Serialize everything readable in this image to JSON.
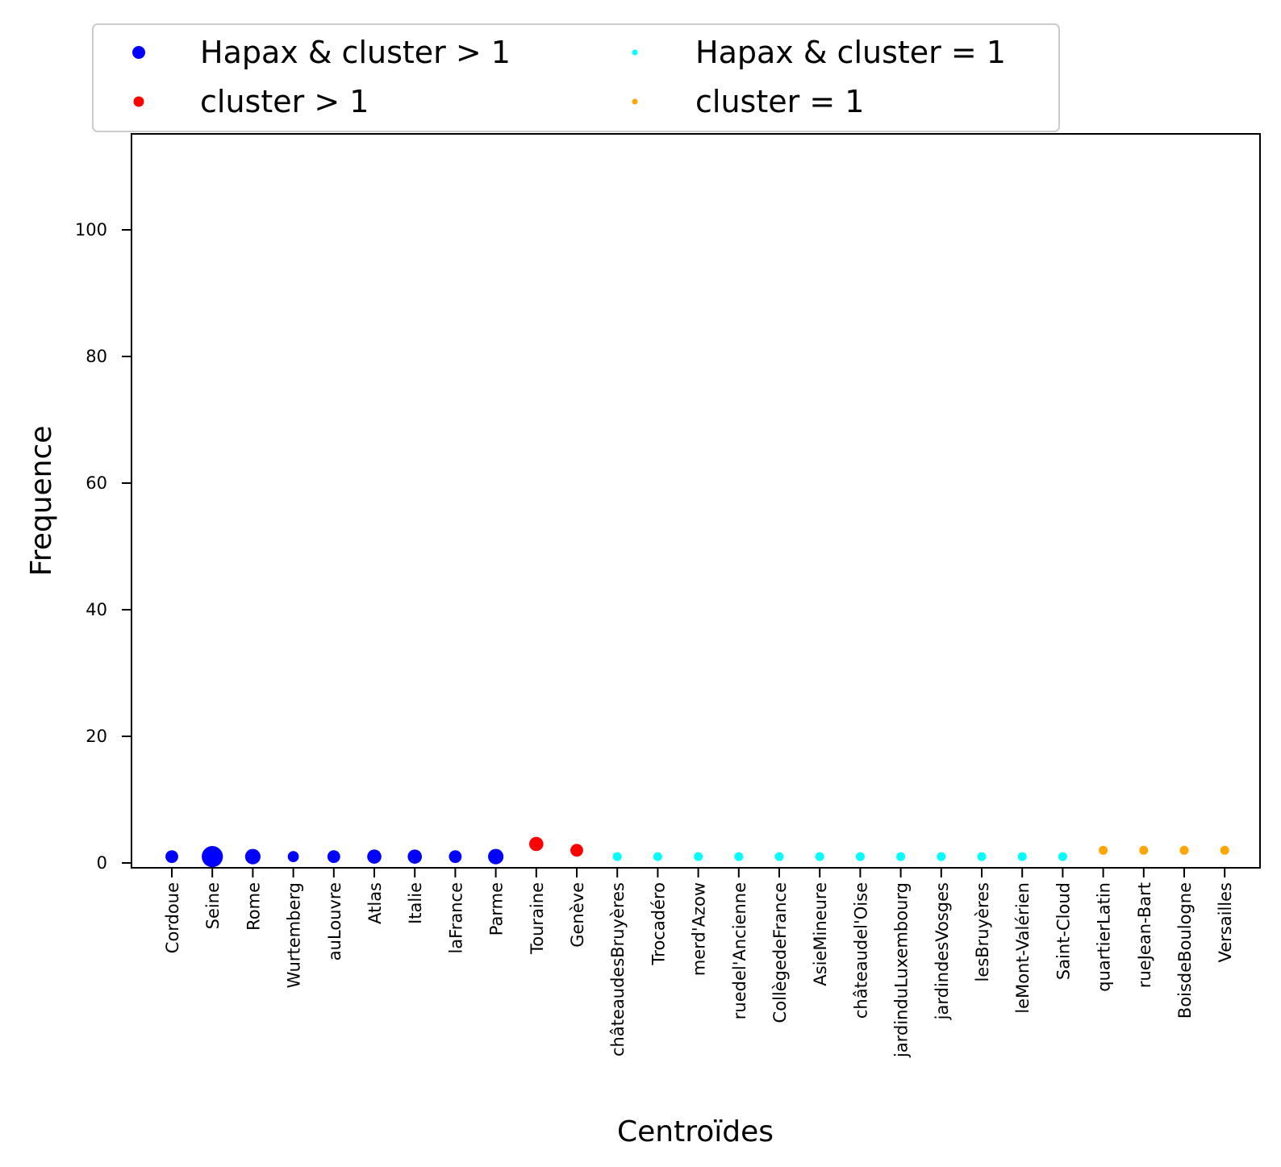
{
  "chart_data": {
    "type": "scatter",
    "xlabel": "Centroïdes",
    "ylabel": "Frequence",
    "ylim": [
      -1,
      115
    ],
    "yticks": [
      0,
      20,
      40,
      60,
      80,
      100
    ],
    "grid": false,
    "legend_placement": "top, above plot, 2 columns",
    "categories": [
      "Cordoue",
      "Seine",
      "Rome",
      "Wurtemberg",
      "auLouvre",
      "Atlas",
      "Italie",
      "laFrance",
      "Parme",
      "Touraine",
      "Genève",
      "châteaudesBruyères",
      "Trocadéro",
      "merd'Azow",
      "ruedel'Ancienne",
      "CollègedeFrance",
      "AsieMineure",
      "châteaudel'Oise",
      "jardinduLuxembourg",
      "jardindesVosges",
      "lesBruyères",
      "leMont-Valérien",
      "Saint-Cloud",
      "quartierLatin",
      "rueJean-Bart",
      "BoisdeBoulogne",
      "Versailles"
    ],
    "series": [
      {
        "name": "Hapax & cluster > 1",
        "color": "#0000ff",
        "points": [
          {
            "x": "Cordoue",
            "y": 1,
            "size": 3
          },
          {
            "x": "Seine",
            "y": 1,
            "size": 11
          },
          {
            "x": "Rome",
            "y": 1,
            "size": 5
          },
          {
            "x": "Wurtemberg",
            "y": 1,
            "size": 2
          },
          {
            "x": "auLouvre",
            "y": 1,
            "size": 3
          },
          {
            "x": "Atlas",
            "y": 1,
            "size": 4
          },
          {
            "x": "Italie",
            "y": 1,
            "size": 4
          },
          {
            "x": "laFrance",
            "y": 1,
            "size": 3
          },
          {
            "x": "Parme",
            "y": 1,
            "size": 5
          }
        ]
      },
      {
        "name": "cluster > 1",
        "color": "#ff0000",
        "points": [
          {
            "x": "Touraine",
            "y": 3,
            "size": 4
          },
          {
            "x": "Genève",
            "y": 2,
            "size": 3
          }
        ]
      },
      {
        "name": "Hapax & cluster = 1",
        "color": "#00ffff",
        "points": [
          {
            "x": "châteaudesBruyères",
            "y": 1,
            "size": 1
          },
          {
            "x": "Trocadéro",
            "y": 1,
            "size": 1
          },
          {
            "x": "merd'Azow",
            "y": 1,
            "size": 1
          },
          {
            "x": "ruedel'Ancienne",
            "y": 1,
            "size": 1
          },
          {
            "x": "CollègedeFrance",
            "y": 1,
            "size": 1
          },
          {
            "x": "AsieMineure",
            "y": 1,
            "size": 1
          },
          {
            "x": "châteaudel'Oise",
            "y": 1,
            "size": 1
          },
          {
            "x": "jardinduLuxembourg",
            "y": 1,
            "size": 1
          },
          {
            "x": "jardindesVosges",
            "y": 1,
            "size": 1
          },
          {
            "x": "lesBruyères",
            "y": 1,
            "size": 1
          },
          {
            "x": "leMont-Valérien",
            "y": 1,
            "size": 1
          },
          {
            "x": "Saint-Cloud",
            "y": 1,
            "size": 1
          }
        ]
      },
      {
        "name": "cluster = 1",
        "color": "#ffa500",
        "points": [
          {
            "x": "quartierLatin",
            "y": 2,
            "size": 1
          },
          {
            "x": "rueJean-Bart",
            "y": 2,
            "size": 1
          },
          {
            "x": "BoisdeBoulogne",
            "y": 2,
            "size": 1
          },
          {
            "x": "Versailles",
            "y": 2,
            "size": 1
          }
        ]
      }
    ]
  }
}
